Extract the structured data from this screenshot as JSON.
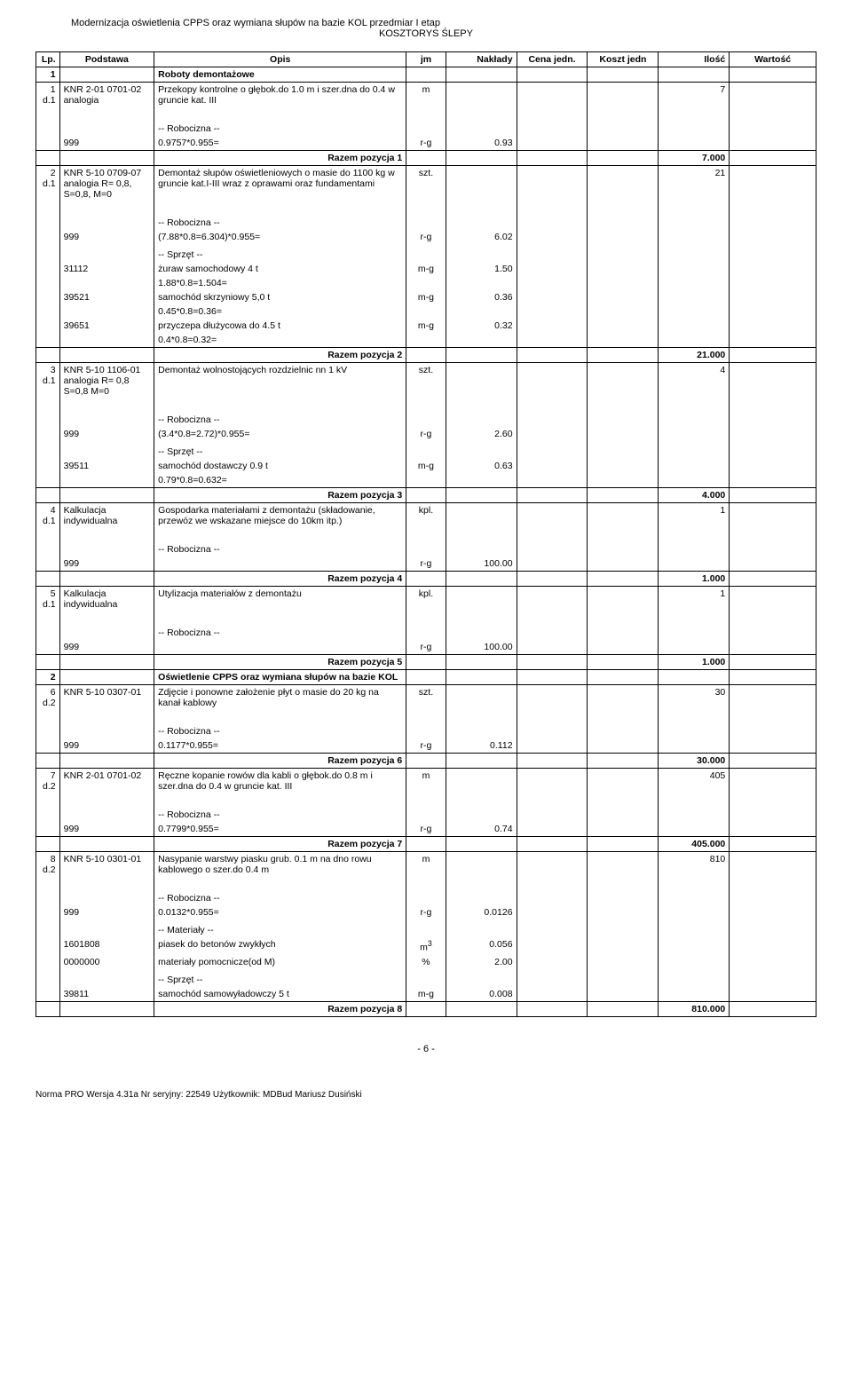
{
  "header": {
    "title": "Modernizacja oświetlenia CPPS oraz wymiana słupów na bazie KOL przedmiar I etap",
    "subtitle": "KOSZTORYS ŚLEPY"
  },
  "columns": [
    "Lp.",
    "Podstawa",
    "Opis",
    "jm",
    "Nakłady",
    "Cena jedn.",
    "Koszt jedn",
    "Ilość",
    "Wartość"
  ],
  "sections": {
    "s1": {
      "num": "1",
      "title": "Roboty demontażowe"
    },
    "s2": {
      "num": "2",
      "title": "Oświetlenie CPPS oraz wymiana słupów na bazie KOL"
    }
  },
  "rows": {
    "r1": {
      "lp1": "1",
      "lp2": "d.1",
      "pod": "KNR 2-01 0701-02 analogia",
      "opis": "Przekopy kontrolne o głębok.do 1.0 m i szer.dna do 0.4 w gruncie kat. III",
      "jm": "m",
      "ilosc": "7",
      "sub": [
        {
          "pod": "",
          "opis": "-- Robocizna --"
        },
        {
          "pod": "999",
          "opis": "0.9757*0.955=",
          "jm": "r-g",
          "nak": "0.93"
        }
      ],
      "razem": {
        "label": "Razem pozycja 1",
        "val": "7.000"
      }
    },
    "r2": {
      "lp1": "2",
      "lp2": "d.1",
      "pod": "KNR 5-10 0709-07 analogia R= 0,8, S=0,8, M=0",
      "opis": "Demontaż słupów oświetleniowych o masie do 1100 kg w gruncie kat.I-III wraz z oprawami oraz fundamentami",
      "jm": "szt.",
      "ilosc": "21",
      "sub": [
        {
          "opis": "-- Robocizna --"
        },
        {
          "pod": "999",
          "opis": "(7.88*0.8=6.304)*0.955=",
          "jm": "r-g",
          "nak": "6.02"
        },
        {
          "opis": ""
        },
        {
          "opis": "-- Sprzęt --"
        },
        {
          "pod": "31112",
          "opis": "żuraw samochodowy 4 t",
          "jm": "m-g",
          "nak": "1.50"
        },
        {
          "opis": "1.88*0.8=1.504="
        },
        {
          "pod": "39521",
          "opis": "samochód skrzyniowy 5,0 t",
          "jm": "m-g",
          "nak": "0.36"
        },
        {
          "opis": "0.45*0.8=0.36="
        },
        {
          "pod": "39651",
          "opis": "przyczepa dłużycowa do 4.5 t",
          "jm": "m-g",
          "nak": "0.32"
        },
        {
          "opis": "0.4*0.8=0.32="
        }
      ],
      "razem": {
        "label": "Razem pozycja 2",
        "val": "21.000"
      }
    },
    "r3": {
      "lp1": "3",
      "lp2": "d.1",
      "pod": "KNR 5-10 1106-01 analogia R= 0,8 S=0,8 M=0",
      "opis": "Demontaż wolnostojących rozdzielnic nn 1 kV",
      "jm": "szt.",
      "ilosc": "4",
      "sub": [
        {
          "opis": "-- Robocizna --"
        },
        {
          "pod": "999",
          "opis": "(3.4*0.8=2.72)*0.955=",
          "jm": "r-g",
          "nak": "2.60"
        },
        {
          "opis": ""
        },
        {
          "opis": "-- Sprzęt --"
        },
        {
          "pod": "39511",
          "opis": "samochód dostawczy 0.9 t",
          "jm": "m-g",
          "nak": "0.63"
        },
        {
          "opis": "0.79*0.8=0.632="
        }
      ],
      "razem": {
        "label": "Razem pozycja 3",
        "val": "4.000"
      }
    },
    "r4": {
      "lp1": "4",
      "lp2": "d.1",
      "pod": "Kalkulacja indywidualna",
      "opis": "Gospodarka materiałami z demontażu (składowanie, przewóz we wskazane miejsce do 10km itp.)",
      "jm": "kpl.",
      "ilosc": "1",
      "sub": [
        {
          "opis": "-- Robocizna --"
        },
        {
          "pod": "999",
          "opis": "",
          "jm": "r-g",
          "nak": "100.00"
        }
      ],
      "razem": {
        "label": "Razem pozycja 4",
        "val": "1.000"
      }
    },
    "r5": {
      "lp1": "5",
      "lp2": "d.1",
      "pod": "Kalkulacja indywidualna",
      "opis": "Utylizacja materiałów z demontażu",
      "jm": "kpl.",
      "ilosc": "1",
      "sub": [
        {
          "opis": "-- Robocizna --"
        },
        {
          "pod": "999",
          "opis": "",
          "jm": "r-g",
          "nak": "100.00"
        }
      ],
      "razem": {
        "label": "Razem pozycja 5",
        "val": "1.000"
      }
    },
    "r6": {
      "lp1": "6",
      "lp2": "d.2",
      "pod": "KNR 5-10 0307-01",
      "opis": "Zdjęcie i ponowne założenie płyt o masie do 20 kg na kanał kablowy",
      "jm": "szt.",
      "ilosc": "30",
      "sub": [
        {
          "opis": "-- Robocizna --"
        },
        {
          "pod": "999",
          "opis": "0.1177*0.955=",
          "jm": "r-g",
          "nak": "0.112"
        }
      ],
      "razem": {
        "label": "Razem pozycja 6",
        "val": "30.000"
      }
    },
    "r7": {
      "lp1": "7",
      "lp2": "d.2",
      "pod": "KNR 2-01 0701-02",
      "opis": "Ręczne kopanie rowów dla kabli o głębok.do 0.8 m i szer.dna do 0.4 w gruncie kat. III",
      "jm": "m",
      "ilosc": "405",
      "sub": [
        {
          "opis": "-- Robocizna --"
        },
        {
          "pod": "999",
          "opis": "0.7799*0.955=",
          "jm": "r-g",
          "nak": "0.74"
        }
      ],
      "razem": {
        "label": "Razem pozycja 7",
        "val": "405.000"
      }
    },
    "r8": {
      "lp1": "8",
      "lp2": "d.2",
      "pod": "KNR 5-10 0301-01",
      "opis": "Nasypanie warstwy piasku grub. 0.1 m na dno rowu kablowego o szer.do 0.4 m",
      "jm": "m",
      "ilosc": "810",
      "sub": [
        {
          "opis": "-- Robocizna --"
        },
        {
          "pod": "999",
          "opis": "0.0132*0.955=",
          "jm": "r-g",
          "nak": "0.0126"
        },
        {
          "opis": ""
        },
        {
          "opis": "-- Materiały --"
        },
        {
          "pod": "1601808",
          "opis": "piasek do betonów zwykłych",
          "jm": "m3",
          "nak": "0.056"
        },
        {
          "pod": "0000000",
          "opis": "materiały pomocnicze(od M)",
          "jm": "%",
          "nak": "2.00"
        },
        {
          "opis": ""
        },
        {
          "opis": "-- Sprzęt --"
        },
        {
          "pod": "39811",
          "opis": "samochód samowyładowczy 5 t",
          "jm": "m-g",
          "nak": "0.008"
        }
      ],
      "razem": {
        "label": "Razem pozycja 8",
        "val": "810.000"
      }
    }
  },
  "pagenum": "- 6 -",
  "footer": "Norma PRO Wersja 4.31a Nr seryjny: 22549 Użytkownik: MDBud Mariusz Dusiński"
}
